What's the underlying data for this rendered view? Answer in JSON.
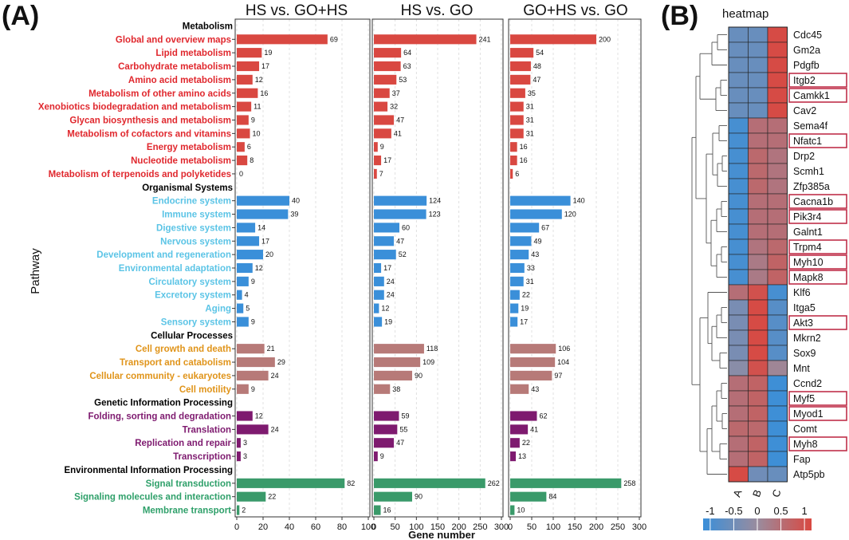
{
  "figure": {
    "panel_a_letter": "(A)",
    "panel_b_letter": "(B)",
    "y_axis_title": "Pathway",
    "x_axis_title": "Gene number"
  },
  "colors": {
    "Metabolism": "#d94841",
    "Organismal Systems": "#3a8fd9",
    "Cellular Processes": "#b77a78",
    "Genetic Information Processing": "#7e1a6f",
    "Environmental Information Processing": "#3a9a6a",
    "label_Metabolism": "#e0282e",
    "label_Organismal Systems": "#5bc4e6",
    "label_Cellular Processes": "#e0941a",
    "label_Genetic Information Processing": "#7e1a6f",
    "label_Environmental Information Processing": "#2fa06a"
  },
  "chart_data": [
    {
      "type": "bar",
      "orientation": "horizontal",
      "xlabel": "Gene number",
      "ylabel": "Pathway",
      "rows": [
        {
          "kind": "header",
          "label": "Metabolism"
        },
        {
          "kind": "bar",
          "label": "Global and overview maps",
          "group": "Metabolism"
        },
        {
          "kind": "bar",
          "label": "Lipid metabolism",
          "group": "Metabolism"
        },
        {
          "kind": "bar",
          "label": "Carbohydrate metabolism",
          "group": "Metabolism"
        },
        {
          "kind": "bar",
          "label": "Amino acid metabolism",
          "group": "Metabolism"
        },
        {
          "kind": "bar",
          "label": "Metabolism of other amino acids",
          "group": "Metabolism"
        },
        {
          "kind": "bar",
          "label": "Xenobiotics biodegradation and metabolism",
          "group": "Metabolism"
        },
        {
          "kind": "bar",
          "label": "Glycan biosynthesis and metabolism",
          "group": "Metabolism"
        },
        {
          "kind": "bar",
          "label": "Metabolism of cofactors and vitamins",
          "group": "Metabolism"
        },
        {
          "kind": "bar",
          "label": "Energy metabolism",
          "group": "Metabolism"
        },
        {
          "kind": "bar",
          "label": "Nucleotide metabolism",
          "group": "Metabolism"
        },
        {
          "kind": "bar",
          "label": "Metabolism of terpenoids and polyketides",
          "group": "Metabolism"
        },
        {
          "kind": "header",
          "label": "Organismal Systems"
        },
        {
          "kind": "bar",
          "label": "Endocrine system",
          "group": "Organismal Systems"
        },
        {
          "kind": "bar",
          "label": "Immune system",
          "group": "Organismal Systems"
        },
        {
          "kind": "bar",
          "label": "Digestive system",
          "group": "Organismal Systems"
        },
        {
          "kind": "bar",
          "label": "Nervous system",
          "group": "Organismal Systems"
        },
        {
          "kind": "bar",
          "label": "Development and regeneration",
          "group": "Organismal Systems"
        },
        {
          "kind": "bar",
          "label": "Environmental adaptation",
          "group": "Organismal Systems"
        },
        {
          "kind": "bar",
          "label": "Circulatory system",
          "group": "Organismal Systems"
        },
        {
          "kind": "bar",
          "label": "Excretory system",
          "group": "Organismal Systems"
        },
        {
          "kind": "bar",
          "label": "Aging",
          "group": "Organismal Systems"
        },
        {
          "kind": "bar",
          "label": "Sensory system",
          "group": "Organismal Systems"
        },
        {
          "kind": "header",
          "label": "Cellular Processes"
        },
        {
          "kind": "bar",
          "label": "Cell growth and death",
          "group": "Cellular Processes"
        },
        {
          "kind": "bar",
          "label": "Transport and catabolism",
          "group": "Cellular Processes"
        },
        {
          "kind": "bar",
          "label": "Cellular community - eukaryotes",
          "group": "Cellular Processes"
        },
        {
          "kind": "bar",
          "label": "Cell motility",
          "group": "Cellular Processes"
        },
        {
          "kind": "header",
          "label": "Genetic Information Processing"
        },
        {
          "kind": "bar",
          "label": "Folding, sorting and degradation",
          "group": "Genetic Information Processing"
        },
        {
          "kind": "bar",
          "label": "Translation",
          "group": "Genetic Information Processing"
        },
        {
          "kind": "bar",
          "label": "Replication and repair",
          "group": "Genetic Information Processing"
        },
        {
          "kind": "bar",
          "label": "Transcription",
          "group": "Genetic Information Processing"
        },
        {
          "kind": "header",
          "label": "Environmental Information Processing"
        },
        {
          "kind": "bar",
          "label": "Signal transduction",
          "group": "Environmental Information Processing"
        },
        {
          "kind": "bar",
          "label": "Signaling molecules and interaction",
          "group": "Environmental Information Processing"
        },
        {
          "kind": "bar",
          "label": "Membrane transport",
          "group": "Environmental Information Processing"
        }
      ],
      "series": [
        {
          "name": "HS vs. GO+HS",
          "xlim": [
            0,
            100
          ],
          "ticks": [
            0,
            20,
            40,
            60,
            80,
            100
          ],
          "values": [
            69,
            19,
            17,
            12,
            16,
            11,
            9,
            10,
            6,
            8,
            0,
            40,
            39,
            14,
            17,
            20,
            12,
            9,
            4,
            5,
            9,
            21,
            29,
            24,
            9,
            12,
            24,
            3,
            3,
            82,
            22,
            2
          ]
        },
        {
          "name": "HS vs. GO",
          "xlim": [
            0,
            300
          ],
          "ticks": [
            0,
            50,
            100,
            150,
            200,
            250,
            300
          ],
          "values": [
            241,
            64,
            63,
            53,
            37,
            32,
            47,
            41,
            9,
            17,
            7,
            124,
            123,
            60,
            47,
            52,
            17,
            24,
            24,
            12,
            19,
            118,
            109,
            90,
            38,
            59,
            55,
            47,
            9,
            262,
            90,
            16
          ]
        },
        {
          "name": "GO+HS vs. GO",
          "xlim": [
            0,
            300
          ],
          "ticks": [
            0,
            50,
            100,
            150,
            200,
            250,
            300
          ],
          "values": [
            200,
            54,
            48,
            47,
            35,
            31,
            31,
            31,
            16,
            16,
            6,
            140,
            120,
            67,
            49,
            43,
            33,
            31,
            22,
            19,
            17,
            106,
            104,
            97,
            43,
            62,
            41,
            22,
            13,
            258,
            84,
            10
          ]
        }
      ]
    },
    {
      "type": "heatmap",
      "title": "heatmap",
      "columns": [
        "A",
        "B",
        "C"
      ],
      "genes": [
        "Cdc45",
        "Gm2a",
        "Pdgfb",
        "Itgb2",
        "Camkk1",
        "Cav2",
        "Sema4f",
        "Nfatc1",
        "Drp2",
        "Scmh1",
        "Zfp385a",
        "Cacna1b",
        "Pik3r4",
        "Galnt1",
        "Trpm4",
        "Myh10",
        "Mapk8",
        "Klf6",
        "Itga5",
        "Akt3",
        "Mkrn2",
        "Sox9",
        "Mnt",
        "Ccnd2",
        "Myf5",
        "Myod1",
        "Comt",
        "Myh8",
        "Fap",
        "Atp5pb"
      ],
      "boxed": [
        false,
        false,
        false,
        true,
        true,
        false,
        false,
        true,
        false,
        false,
        false,
        true,
        true,
        false,
        true,
        true,
        true,
        false,
        false,
        true,
        false,
        false,
        false,
        false,
        true,
        true,
        false,
        true,
        false,
        false
      ],
      "values": [
        [
          -0.6,
          -0.6,
          1.1
        ],
        [
          -0.6,
          -0.6,
          1.1
        ],
        [
          -0.6,
          -0.6,
          1.1
        ],
        [
          -0.6,
          -0.6,
          1.1
        ],
        [
          -0.6,
          -0.6,
          1.1
        ],
        [
          -0.6,
          -0.6,
          1.1
        ],
        [
          -1.0,
          0.5,
          0.5
        ],
        [
          -1.0,
          0.5,
          0.5
        ],
        [
          -1.0,
          0.6,
          0.4
        ],
        [
          -1.0,
          0.6,
          0.4
        ],
        [
          -1.0,
          0.6,
          0.4
        ],
        [
          -1.0,
          0.5,
          0.5
        ],
        [
          -1.0,
          0.5,
          0.5
        ],
        [
          -1.0,
          0.5,
          0.5
        ],
        [
          -1.0,
          0.4,
          0.6
        ],
        [
          -1.0,
          0.3,
          0.7
        ],
        [
          -1.0,
          0.3,
          0.7
        ],
        [
          0.5,
          1.0,
          -1.0
        ],
        [
          -0.4,
          1.1,
          -0.8
        ],
        [
          -0.4,
          1.1,
          -0.8
        ],
        [
          -0.4,
          1.1,
          -0.8
        ],
        [
          -0.4,
          1.1,
          -0.8
        ],
        [
          -0.2,
          1.0,
          0.1
        ],
        [
          0.5,
          0.7,
          -1.1
        ],
        [
          0.5,
          0.7,
          -1.1
        ],
        [
          0.5,
          0.7,
          -1.1
        ],
        [
          0.6,
          0.6,
          -1.1
        ],
        [
          0.5,
          0.7,
          -1.1
        ],
        [
          0.5,
          0.7,
          -1.1
        ],
        [
          1.1,
          -0.5,
          -0.6
        ]
      ],
      "scale_min": -1.15,
      "scale_max": 1.15,
      "legend": {
        "ticks": [
          -1,
          -0.5,
          0,
          0.5,
          1
        ],
        "tick_labels": [
          "-1",
          "-0.5",
          "0",
          "0.5",
          "1"
        ],
        "low": "#3a8fd9",
        "mid": "#9a8c9e",
        "high": "#d94841"
      }
    }
  ]
}
